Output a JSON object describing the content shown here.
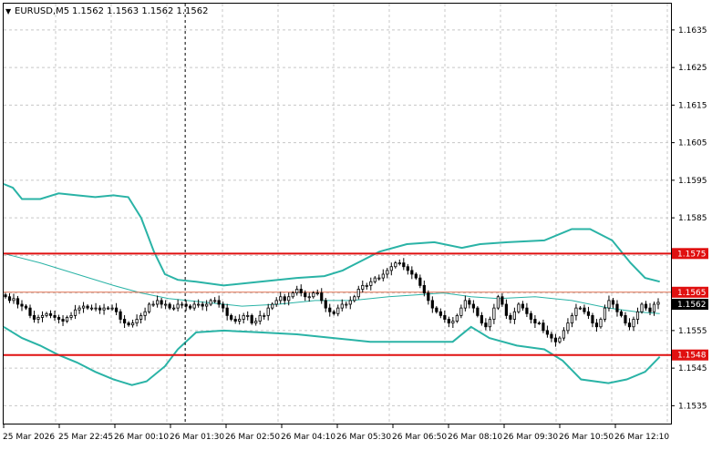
{
  "header": {
    "menu_glyph": "▼",
    "symbol": "EURUSD,M5",
    "ohlc": "1.1562 1.1563 1.1562 1.1562"
  },
  "colors": {
    "bg": "#ffffff",
    "grid": "#c8c8c8",
    "candle": "#000000",
    "bands": "#2ab3a6",
    "level": "#e01010",
    "bid_line": "#e07050"
  },
  "chart_data": {
    "type": "candlestick",
    "symbol": "EURUSD",
    "timeframe": "M5",
    "ylim": [
      1.153,
      1.1642
    ],
    "y_ticks": [
      "1.1635",
      "1.1625",
      "1.1615",
      "1.1605",
      "1.1595",
      "1.1585",
      "1.1575",
      "1.1565",
      "1.1555",
      "1.1545",
      "1.1535"
    ],
    "x_labels": [
      "25 Mar 2026",
      "25 Mar 22:45",
      "26 Mar 00:10",
      "26 Mar 01:30",
      "26 Mar 02:50",
      "26 Mar 04:10",
      "26 Mar 05:30",
      "26 Mar 06:50",
      "26 Mar 08:10",
      "26 Mar 09:30",
      "26 Mar 10:50",
      "26 Mar 12:10"
    ],
    "levels": [
      {
        "label": "1.1575",
        "value": 1.15755
      },
      {
        "label": "1.1548",
        "value": 1.15485
      }
    ],
    "price_tags": [
      {
        "label": "1.1565",
        "value": 1.15652,
        "kind": "level"
      },
      {
        "label": "1.1562",
        "value": 1.1562,
        "kind": "bid"
      }
    ],
    "bands_upper": [
      [
        0,
        1.1594
      ],
      [
        5,
        1.1593
      ],
      [
        10,
        1.159
      ],
      [
        20,
        1.159
      ],
      [
        30,
        1.15915
      ],
      [
        40,
        1.1591
      ],
      [
        50,
        1.15905
      ],
      [
        60,
        1.1591
      ],
      [
        68,
        1.15905
      ],
      [
        75,
        1.1585
      ],
      [
        82,
        1.1576
      ],
      [
        88,
        1.157
      ],
      [
        95,
        1.15685
      ],
      [
        105,
        1.1568
      ],
      [
        120,
        1.1567
      ],
      [
        140,
        1.1568
      ],
      [
        160,
        1.1569
      ],
      [
        175,
        1.15695
      ],
      [
        185,
        1.1571
      ],
      [
        195,
        1.15735
      ],
      [
        205,
        1.1576
      ],
      [
        220,
        1.1578
      ],
      [
        235,
        1.15785
      ],
      [
        250,
        1.1577
      ],
      [
        260,
        1.1578
      ],
      [
        275,
        1.15785
      ],
      [
        295,
        1.1579
      ],
      [
        310,
        1.1582
      ],
      [
        320,
        1.1582
      ],
      [
        332,
        1.1579
      ],
      [
        342,
        1.1573
      ],
      [
        350,
        1.1569
      ],
      [
        358,
        1.1568
      ]
    ],
    "bands_middle": [
      [
        0,
        1.15755
      ],
      [
        20,
        1.1573
      ],
      [
        40,
        1.157
      ],
      [
        60,
        1.1567
      ],
      [
        75,
        1.1565
      ],
      [
        90,
        1.15635
      ],
      [
        110,
        1.15625
      ],
      [
        130,
        1.15615
      ],
      [
        150,
        1.1562
      ],
      [
        170,
        1.1563
      ],
      [
        190,
        1.1563
      ],
      [
        210,
        1.1564
      ],
      [
        225,
        1.15645
      ],
      [
        240,
        1.1565
      ],
      [
        255,
        1.1564
      ],
      [
        270,
        1.15635
      ],
      [
        290,
        1.1564
      ],
      [
        310,
        1.1563
      ],
      [
        330,
        1.1561
      ],
      [
        345,
        1.156
      ],
      [
        358,
        1.15595
      ]
    ],
    "bands_lower": [
      [
        0,
        1.1556
      ],
      [
        10,
        1.1553
      ],
      [
        20,
        1.1551
      ],
      [
        30,
        1.15485
      ],
      [
        40,
        1.15465
      ],
      [
        50,
        1.1544
      ],
      [
        60,
        1.1542
      ],
      [
        70,
        1.15405
      ],
      [
        78,
        1.15415
      ],
      [
        88,
        1.15455
      ],
      [
        95,
        1.155
      ],
      [
        105,
        1.15545
      ],
      [
        120,
        1.1555
      ],
      [
        140,
        1.15545
      ],
      [
        160,
        1.1554
      ],
      [
        180,
        1.1553
      ],
      [
        200,
        1.1552
      ],
      [
        230,
        1.1552
      ],
      [
        245,
        1.1552
      ],
      [
        255,
        1.1556
      ],
      [
        265,
        1.1553
      ],
      [
        280,
        1.1551
      ],
      [
        295,
        1.155
      ],
      [
        305,
        1.1547
      ],
      [
        315,
        1.1542
      ],
      [
        330,
        1.1541
      ],
      [
        340,
        1.1542
      ],
      [
        350,
        1.1544
      ],
      [
        358,
        1.1548
      ]
    ],
    "closes": [
      1.1564,
      1.1563,
      1.15635,
      1.1562,
      1.15615,
      1.1561,
      1.1559,
      1.1558,
      1.15585,
      1.1559,
      1.15595,
      1.1559,
      1.15585,
      1.1558,
      1.15575,
      1.15585,
      1.1559,
      1.15605,
      1.1561,
      1.15615,
      1.1561,
      1.1561,
      1.1561,
      1.15605,
      1.1561,
      1.1561,
      1.1561,
      1.156,
      1.1558,
      1.1557,
      1.15565,
      1.1557,
      1.1558,
      1.1559,
      1.156,
      1.1562,
      1.1562,
      1.1563,
      1.1562,
      1.1562,
      1.1561,
      1.1561,
      1.1562,
      1.1562,
      1.15615,
      1.1561,
      1.1562,
      1.1562,
      1.15615,
      1.1562,
      1.1563,
      1.1563,
      1.1562,
      1.1561,
      1.1559,
      1.1558,
      1.15575,
      1.1558,
      1.1559,
      1.1559,
      1.1557,
      1.15575,
      1.1559,
      1.1559,
      1.1561,
      1.1562,
      1.1563,
      1.1564,
      1.1563,
      1.1564,
      1.1565,
      1.1566,
      1.1565,
      1.1564,
      1.1564,
      1.1565,
      1.1565,
      1.1563,
      1.1561,
      1.156,
      1.15595,
      1.1561,
      1.1562,
      1.1562,
      1.1563,
      1.1564,
      1.1566,
      1.1567,
      1.1567,
      1.1568,
      1.1569,
      1.1569,
      1.157,
      1.1571,
      1.1572,
      1.1573,
      1.1573,
      1.1572,
      1.1571,
      1.157,
      1.1569,
      1.1567,
      1.1565,
      1.1563,
      1.1561,
      1.156,
      1.1559,
      1.1558,
      1.1557,
      1.15575,
      1.1559,
      1.1561,
      1.1563,
      1.1562,
      1.1561,
      1.1559,
      1.1557,
      1.1556,
      1.1558,
      1.1561,
      1.1564,
      1.1562,
      1.1559,
      1.1558,
      1.156,
      1.1562,
      1.1561,
      1.15595,
      1.1558,
      1.1557,
      1.1557,
      1.1555,
      1.1554,
      1.1553,
      1.1552,
      1.1553,
      1.1555,
      1.1557,
      1.1559,
      1.1561,
      1.1561,
      1.156,
      1.1559,
      1.1557,
      1.1556,
      1.1558,
      1.1561,
      1.1563,
      1.1562,
      1.156,
      1.1559,
      1.1557,
      1.1556,
      1.1558,
      1.156,
      1.1562,
      1.1561,
      1.156,
      1.1562,
      1.15625
    ]
  },
  "crosshair_time_index": 44
}
